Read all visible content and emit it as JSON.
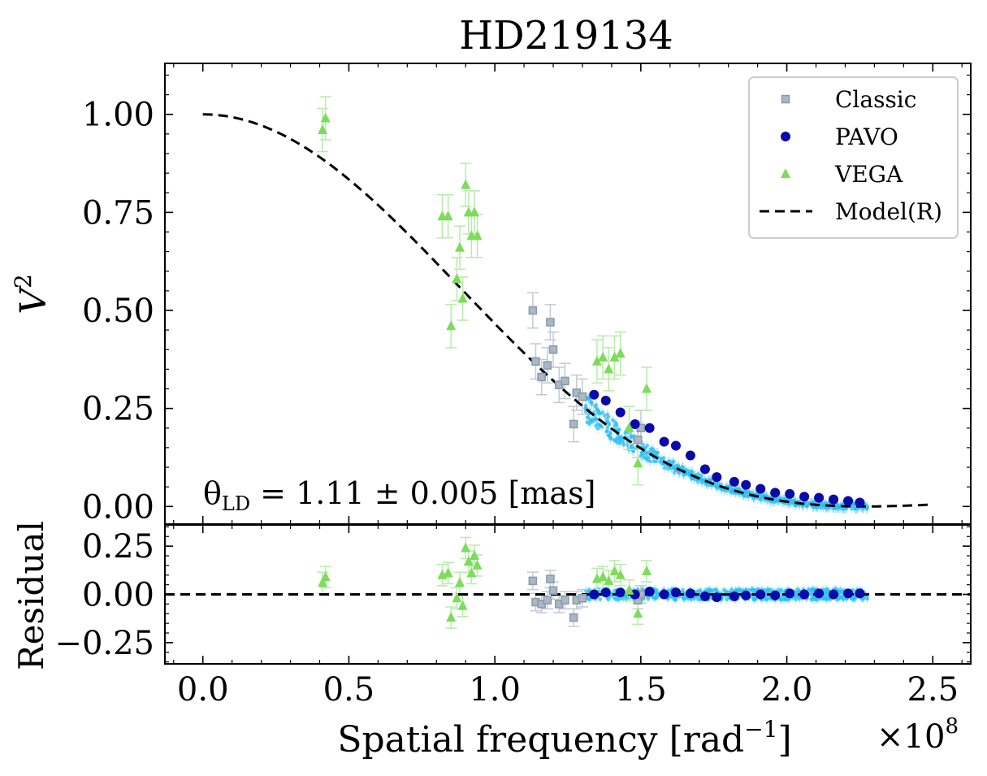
{
  "chart_data": {
    "type": "scatter",
    "title": "HD219134",
    "xlabel": "Spatial frequency [rad",
    "xlabel_sup": "−1",
    "xlabel_close": "]",
    "x_multiplier": "×10",
    "x_multiplier_exp": "8",
    "ylabel": "V",
    "ylabel_sup": "2",
    "residual_ylabel": "Residual",
    "xlim": [
      -0.13,
      2.63
    ],
    "ylim": [
      -0.045,
      1.13
    ],
    "residual_ylim": [
      -0.36,
      0.36
    ],
    "x_ticks": [
      "0.0",
      "0.5",
      "1.0",
      "1.5",
      "2.0",
      "2.5"
    ],
    "y_ticks": [
      "0.00",
      "0.25",
      "0.50",
      "0.75",
      "1.00"
    ],
    "residual_y_ticks": [
      "−0.25",
      "0.00",
      "0.25"
    ],
    "annotation": "θLD = 1.11 ± 0.005 [mas]",
    "legend_position": "top-right",
    "legend": [
      {
        "label": "Classic",
        "marker": "square",
        "color": "#8a9aaa"
      },
      {
        "label": "PAVO",
        "marker": "circle",
        "color": "#0a0aaa"
      },
      {
        "label": "VEGA",
        "marker": "triangle",
        "color": "#7ddc5a"
      },
      {
        "label": "Model(R)",
        "marker": "dashed-line",
        "color": "#000000"
      }
    ],
    "model": {
      "theta_mas": 1.11,
      "x_max": 2.5
    },
    "series": [
      {
        "name": "Classic",
        "color": "#8a9aaa",
        "marker": "square",
        "x": [
          1.13,
          1.14,
          1.16,
          1.18,
          1.19,
          1.2,
          1.22,
          1.24,
          1.27,
          1.28,
          1.3,
          1.49,
          1.5
        ],
        "y": [
          0.5,
          0.37,
          0.33,
          0.36,
          0.47,
          0.4,
          0.31,
          0.32,
          0.21,
          0.29,
          0.28,
          0.17,
          0.2
        ],
        "residual": [
          0.07,
          -0.04,
          -0.05,
          -0.03,
          0.08,
          0.02,
          -0.05,
          -0.03,
          -0.12,
          -0.03,
          -0.02,
          -0.03,
          0.0
        ]
      },
      {
        "name": "PAVO",
        "color": "#0a0aaa",
        "marker": "circle",
        "x": [
          1.34,
          1.38,
          1.43,
          1.48,
          1.53,
          1.58,
          1.62,
          1.67,
          1.72,
          1.76,
          1.82,
          1.86,
          1.91,
          1.96,
          2.01,
          2.06,
          2.11,
          2.16,
          2.21,
          2.25
        ],
        "y": [
          0.285,
          0.27,
          0.24,
          0.21,
          0.2,
          0.165,
          0.155,
          0.13,
          0.095,
          0.075,
          0.063,
          0.055,
          0.045,
          0.035,
          0.032,
          0.025,
          0.022,
          0.018,
          0.014,
          0.01
        ],
        "residual": [
          0.0,
          0.01,
          0.01,
          0.0,
          0.015,
          0.0,
          0.01,
          0.005,
          -0.01,
          -0.015,
          -0.01,
          -0.005,
          0.0,
          -0.005,
          0.005,
          0.0,
          0.005,
          0.0,
          0.005,
          0.005
        ]
      },
      {
        "name": "VEGA",
        "color": "#7ddc5a",
        "marker": "triangle",
        "x": [
          0.41,
          0.42,
          0.82,
          0.84,
          0.85,
          0.87,
          0.88,
          0.89,
          0.9,
          0.91,
          0.92,
          0.93,
          0.94,
          1.35,
          1.37,
          1.39,
          1.41,
          1.43,
          1.46,
          1.49,
          1.52
        ],
        "y": [
          0.96,
          0.99,
          0.74,
          0.74,
          0.46,
          0.58,
          0.66,
          0.53,
          0.82,
          0.75,
          0.69,
          0.75,
          0.69,
          0.37,
          0.38,
          0.35,
          0.38,
          0.39,
          0.2,
          0.11,
          0.3
        ],
        "residual": [
          0.06,
          0.09,
          0.1,
          0.11,
          -0.12,
          -0.02,
          0.06,
          -0.06,
          0.24,
          0.17,
          0.11,
          0.2,
          0.15,
          0.08,
          0.09,
          0.07,
          0.12,
          0.1,
          0.02,
          -0.1,
          0.12
        ]
      }
    ]
  }
}
